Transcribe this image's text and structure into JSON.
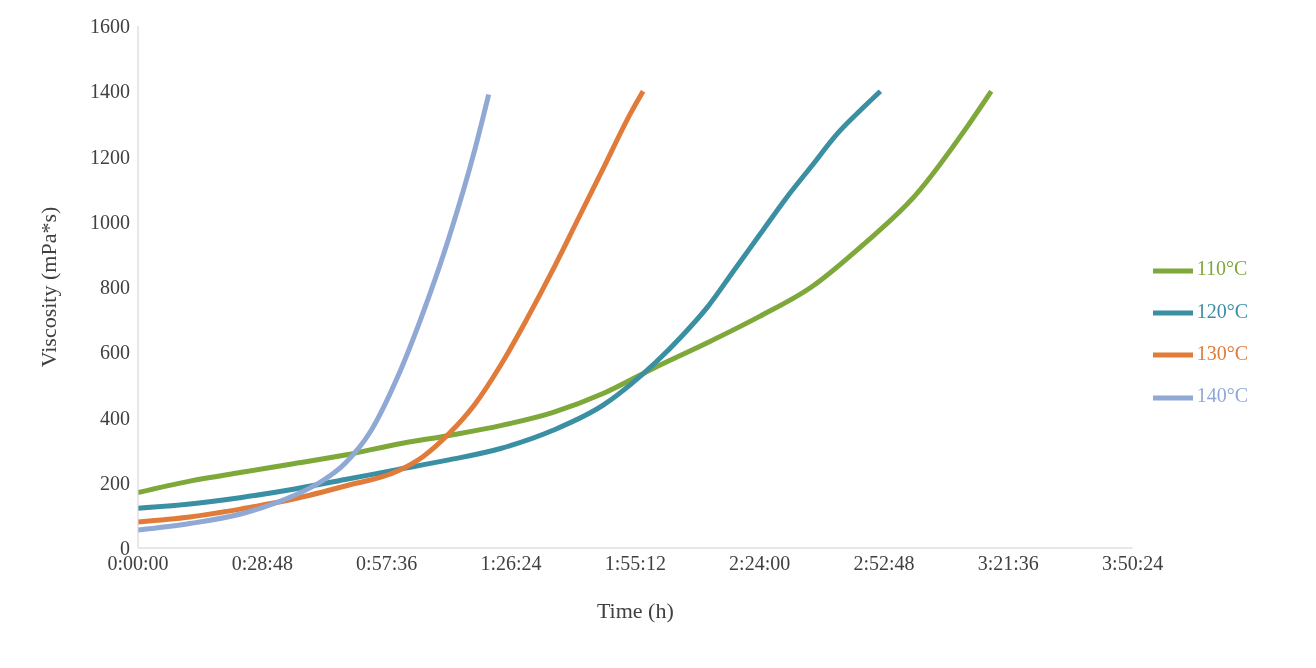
{
  "chart_data": {
    "type": "line",
    "xlabel": "Time (h)",
    "ylabel": "Viscosity (mPa*s)",
    "xlim": [
      0,
      3.84
    ],
    "xticks": [
      {
        "value": 0,
        "label": "0:00:00"
      },
      {
        "value": 0.48,
        "label": "0:28:48"
      },
      {
        "value": 0.96,
        "label": "0:57:36"
      },
      {
        "value": 1.44,
        "label": "1:26:24"
      },
      {
        "value": 1.92,
        "label": "1:55:12"
      },
      {
        "value": 2.4,
        "label": "2:24:00"
      },
      {
        "value": 2.88,
        "label": "2:52:48"
      },
      {
        "value": 3.36,
        "label": "3:21:36"
      },
      {
        "value": 3.84,
        "label": "3:50:24"
      }
    ],
    "ylim": [
      0,
      1600
    ],
    "yticks": [
      0,
      200,
      400,
      600,
      800,
      1000,
      1200,
      1400,
      1600
    ],
    "grid": false,
    "legend": "right",
    "marker": "none",
    "line_style": "solid",
    "series": [
      {
        "name": "110°C",
        "color": "#7fa83a",
        "x": [
          0,
          0.2,
          0.4,
          0.6,
          0.8,
          1.0,
          1.2,
          1.4,
          1.6,
          1.8,
          2.0,
          2.2,
          2.4,
          2.6,
          2.8,
          3.0,
          3.2,
          3.294
        ],
        "values": [
          170,
          205,
          232,
          258,
          285,
          318,
          345,
          375,
          415,
          475,
          555,
          630,
          710,
          800,
          930,
          1080,
          1290,
          1400
        ]
      },
      {
        "name": "120°C",
        "color": "#3a8fa3",
        "x": [
          0,
          0.2,
          0.4,
          0.6,
          0.8,
          1.0,
          1.2,
          1.4,
          1.6,
          1.8,
          1.9,
          2.0,
          2.1,
          2.2,
          2.3,
          2.4,
          2.5,
          2.6,
          2.7,
          2.8,
          2.866
        ],
        "values": [
          122,
          135,
          155,
          180,
          210,
          240,
          270,
          305,
          360,
          440,
          500,
          570,
          650,
          740,
          850,
          960,
          1070,
          1170,
          1270,
          1350,
          1400
        ]
      },
      {
        "name": "130°C",
        "color": "#e07b39",
        "x": [
          0,
          0.2,
          0.4,
          0.6,
          0.8,
          1.0,
          1.1,
          1.2,
          1.3,
          1.4,
          1.5,
          1.6,
          1.7,
          1.8,
          1.9,
          1.95
        ],
        "values": [
          80,
          95,
          120,
          150,
          190,
          235,
          280,
          350,
          440,
          560,
          700,
          850,
          1010,
          1170,
          1330,
          1400
        ]
      },
      {
        "name": "140°C",
        "color": "#8fa8d4",
        "x": [
          0,
          0.2,
          0.4,
          0.6,
          0.7,
          0.8,
          0.9,
          1.0,
          1.1,
          1.2,
          1.3,
          1.354
        ],
        "values": [
          55,
          75,
          105,
          160,
          200,
          260,
          360,
          520,
          720,
          950,
          1220,
          1390
        ]
      }
    ]
  }
}
